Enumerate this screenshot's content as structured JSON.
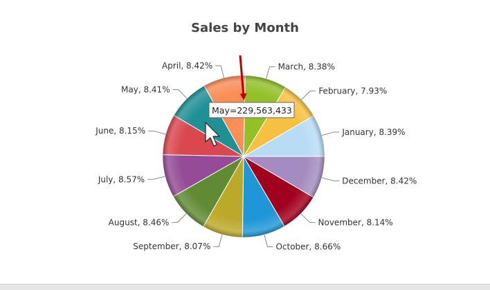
{
  "chart_data": {
    "type": "pie",
    "title": "Sales by Month",
    "slices": [
      {
        "label": "January",
        "percent": "8.39%",
        "value": 8.39,
        "color": "#b8dcf5"
      },
      {
        "label": "February",
        "percent": "7.93%",
        "value": 7.93,
        "color": "#f6c140"
      },
      {
        "label": "March",
        "percent": "8.38%",
        "value": 8.38,
        "color": "#91c027"
      },
      {
        "label": "April",
        "percent": "8.42%",
        "value": 8.42,
        "color": "#fb8d57"
      },
      {
        "label": "May",
        "percent": "8.41%",
        "value": 8.41,
        "color": "#1e9096"
      },
      {
        "label": "June",
        "percent": "8.15%",
        "value": 8.15,
        "color": "#d9484f"
      },
      {
        "label": "July",
        "percent": "8.57%",
        "value": 8.57,
        "color": "#954b97"
      },
      {
        "label": "August",
        "percent": "8.46%",
        "value": 8.46,
        "color": "#618a34"
      },
      {
        "label": "September",
        "percent": "8.07%",
        "value": 8.07,
        "color": "#bba92a"
      },
      {
        "label": "October",
        "percent": "8.66%",
        "value": 8.66,
        "color": "#1f96d6"
      },
      {
        "label": "November",
        "percent": "8.14%",
        "value": 8.14,
        "color": "#a0001e"
      },
      {
        "label": "December",
        "percent": "8.42%",
        "value": 8.42,
        "color": "#a48cc0"
      }
    ],
    "tooltip": {
      "text": "May=229,563,433",
      "slice": "May"
    }
  }
}
